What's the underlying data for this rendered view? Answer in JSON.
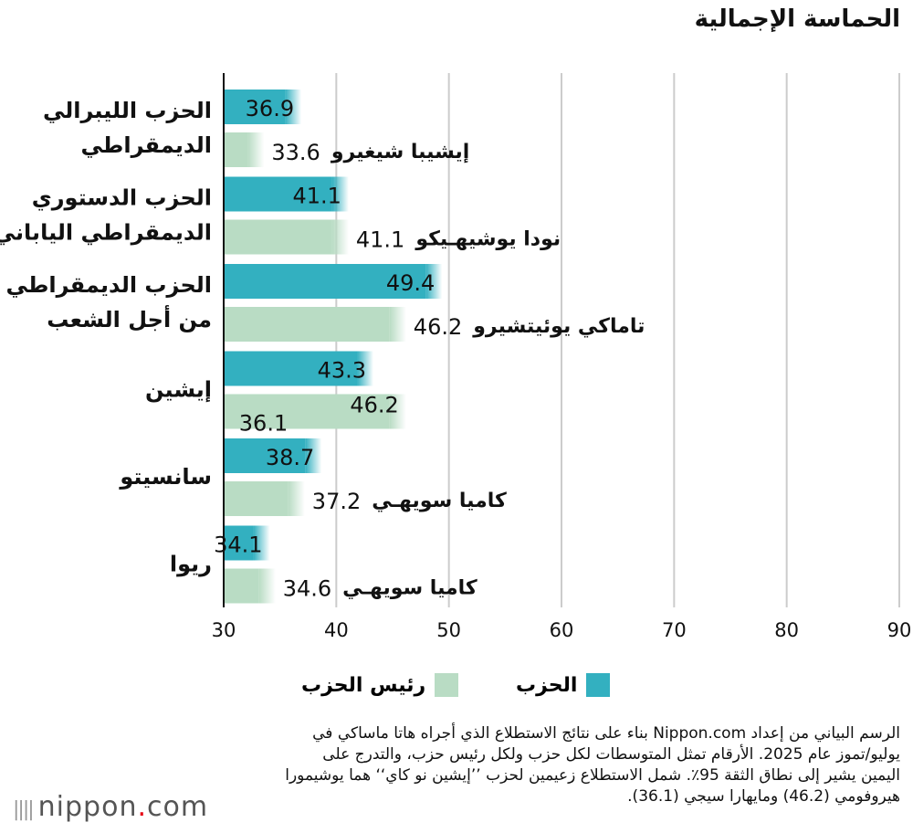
{
  "chart_data": {
    "type": "bar",
    "orientation": "horizontal",
    "title": "الحماسة الإجمالية",
    "xlim": [
      30,
      90
    ],
    "xticks": [
      30,
      40,
      50,
      60,
      70,
      80,
      90
    ],
    "grid": true,
    "legend_position": "bottom",
    "colors": {
      "party": "#33b0c0",
      "leader": "#b9dcc4"
    },
    "legend": [
      {
        "key": "party",
        "label": "الحزب"
      },
      {
        "key": "leader",
        "label": "رئيس الحزب"
      }
    ],
    "categories": [
      {
        "party_lines": [
          "الحزب الليبرالي",
          "الديمقراطي"
        ],
        "party_value": 36.9,
        "leaders": [
          {
            "name": "إيشيبا شيغيرو",
            "value": 33.6
          }
        ]
      },
      {
        "party_lines": [
          "الحزب الدستوري",
          "الديمقراطي الياباني"
        ],
        "party_value": 41.1,
        "leaders": [
          {
            "name": "نودا يوشيهـيكو",
            "value": 41.1
          }
        ]
      },
      {
        "party_lines": [
          "الحزب الديمقراطي",
          "من أجل الشعب"
        ],
        "party_value": 49.4,
        "leaders": [
          {
            "name": "تاماكي يوئيتشيرو",
            "value": 46.2
          }
        ]
      },
      {
        "party_lines": [
          "إيشين"
        ],
        "party_value": 43.3,
        "leaders": [
          {
            "name": "",
            "value": 46.2
          },
          {
            "name": "",
            "value": 36.1
          }
        ]
      },
      {
        "party_lines": [
          "سانسيتو"
        ],
        "party_value": 38.7,
        "leaders": [
          {
            "name": "كاميا سويهـي",
            "value": 37.2
          }
        ]
      },
      {
        "party_lines": [
          "ريوا"
        ],
        "party_value": 34.1,
        "leaders": [
          {
            "name": "كاميا سويهـي",
            "value": 34.6
          }
        ]
      }
    ]
  },
  "footer": "الرسم البياني من إعداد Nippon.com بناء على نتائج الاستطلاع الذي أجراه هاتا ماساكي في يوليو/تموز عام 2025. الأرقام تمثل المتوسطات لكل حزب ولكل رئيس حزب، والتدرج على اليمين يشير إلى نطاق الثقة 95٪. شمل الاستطلاع زعيمين لحزب ’’إيشين نو كاي‘‘ هما يوشيمورا هيروفومي (46.2) ومايهارا سيجي (36.1).",
  "logo": {
    "name": "nippon",
    "dot": ".",
    "suffix": "com"
  }
}
